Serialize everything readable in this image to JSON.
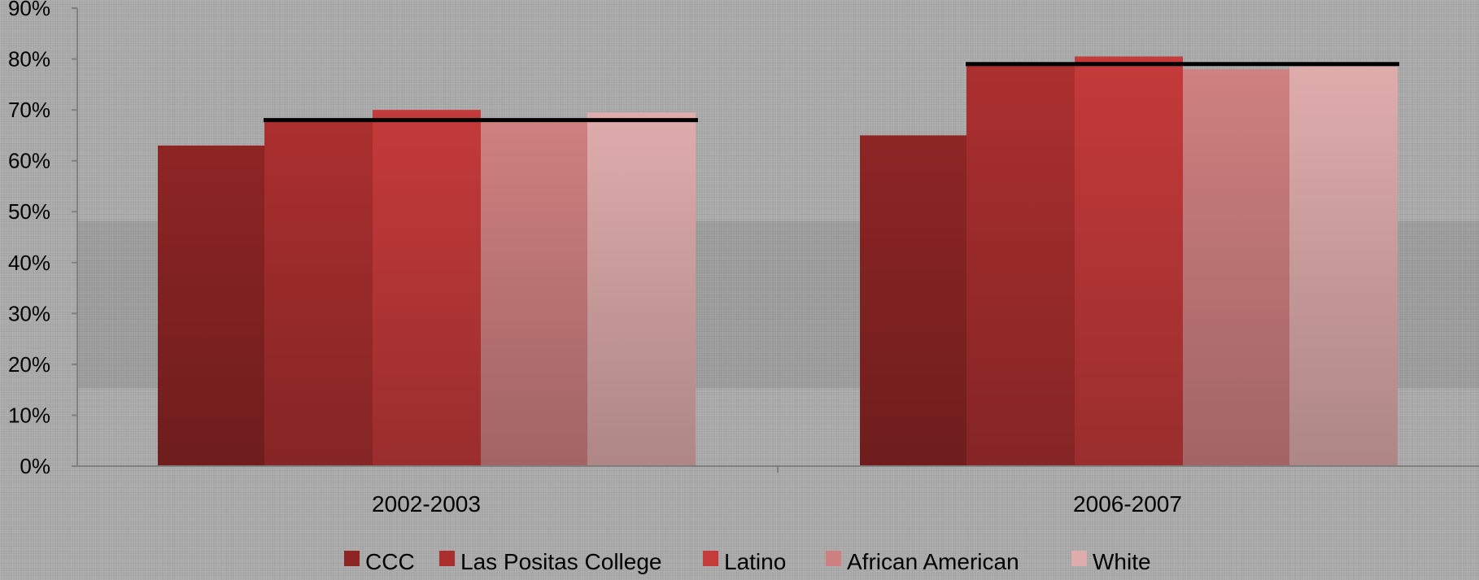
{
  "chart_data": {
    "type": "bar",
    "categories": [
      "2002-2003",
      "2006-2007"
    ],
    "series": [
      {
        "name": "CCC",
        "values": [
          63,
          65
        ],
        "color": "#8e2525"
      },
      {
        "name": "Las Positas College",
        "values": [
          68,
          79
        ],
        "color": "#ab2f2f"
      },
      {
        "name": "Latino",
        "values": [
          70,
          80.5
        ],
        "color": "#c53a3a"
      },
      {
        "name": "African American",
        "values": [
          68,
          78
        ],
        "color": "#cf8080"
      },
      {
        "name": "White",
        "values": [
          69.5,
          78.5
        ],
        "color": "#dfacac"
      }
    ],
    "reference_line": {
      "values": [
        68,
        79
      ],
      "color": "#000000"
    },
    "ylim": [
      0,
      90
    ],
    "yticks": [
      "0%",
      "10%",
      "20%",
      "30%",
      "40%",
      "50%",
      "60%",
      "70%",
      "80%",
      "90%"
    ],
    "title": "",
    "xlabel": "",
    "ylabel": "",
    "legend_position": "bottom",
    "grid": false
  }
}
